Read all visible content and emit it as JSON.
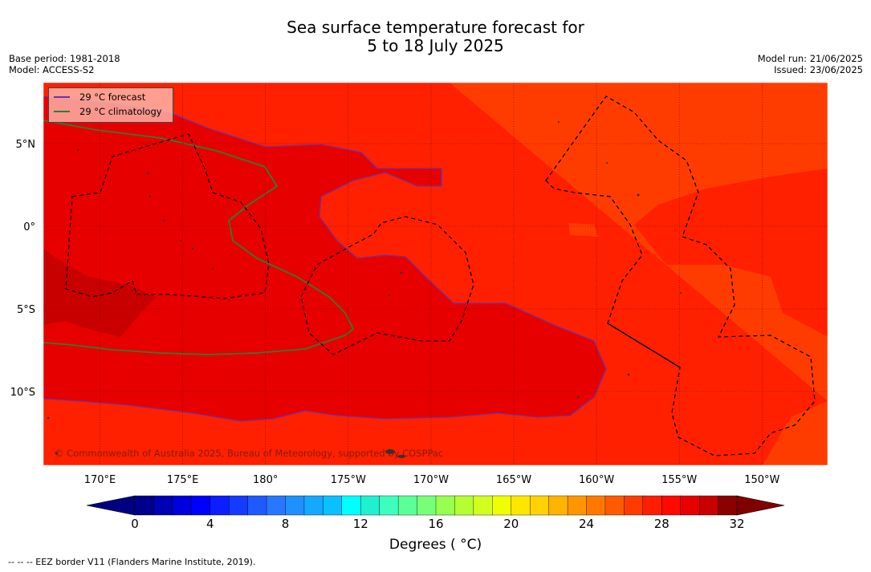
{
  "title_line1": "Sea surface temperature forecast for",
  "title_line2": "5 to 18 July 2025",
  "base_period": "Base period: 1981-2018",
  "model": "Model: ACCESS-S2",
  "model_run": "Model run: 21/06/2025",
  "issued": "Issued: 23/06/2025",
  "copyright": "© Commonwealth of Australia 2025, Bureau of Meteorology, supported by COSPPac",
  "eez_note": "--  --  -- EEZ border V11 (Flanders Marine Institute, 2019).",
  "legend": {
    "forecast": "29 °C  forecast",
    "climatology": "29 °C  climatology",
    "forecast_color": "#7030a0",
    "climatology_color": "#2e7d32"
  },
  "chart_data": {
    "type": "heatmap",
    "lon_ticks": [
      "170°E",
      "175°E",
      "180°",
      "175°W",
      "170°W",
      "165°W",
      "160°W",
      "155°W",
      "150°W"
    ],
    "lat_ticks": [
      "5°N",
      "0°",
      "5°S",
      "10°S"
    ],
    "colorbar": {
      "label": "Degrees ( °C)",
      "min": 0,
      "max": 32,
      "step": 1,
      "tick_labels": [
        "0",
        "4",
        "8",
        "12",
        "16",
        "20",
        "24",
        "28",
        "32"
      ],
      "colors": [
        "#00008b",
        "#0000b4",
        "#0000dc",
        "#0000ff",
        "#0a1eff",
        "#143cff",
        "#1e5aff",
        "#2878ff",
        "#1e90ff",
        "#14a8ff",
        "#0ac0ff",
        "#00ffff",
        "#20f0d0",
        "#3cffbe",
        "#5aff96",
        "#78ff78",
        "#96ff50",
        "#b4ff32",
        "#d2ff1e",
        "#f0ff00",
        "#ffe600",
        "#ffd200",
        "#ffb400",
        "#ff9600",
        "#ff7800",
        "#ff5a00",
        "#ff3c00",
        "#ff1e00",
        "#ff0a00",
        "#e60000",
        "#c80000",
        "#8b0000"
      ],
      "under_color": "#000080",
      "over_color": "#800000"
    },
    "field_levels": {
      "28_29": "#ff2000",
      "29_30": "#e60000",
      "30_31": "#c80000",
      "27_28": "#ff3c00"
    },
    "grid": true
  }
}
